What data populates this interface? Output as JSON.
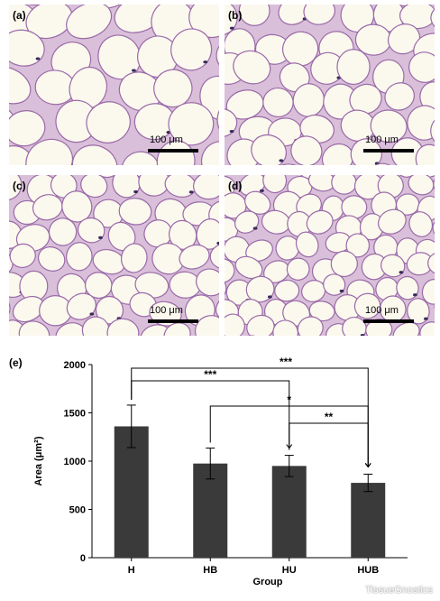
{
  "panels": [
    {
      "label": "(a)",
      "scale": "100 μm"
    },
    {
      "label": "(b)",
      "scale": "100 μm"
    },
    {
      "label": "(c)",
      "scale": "100 μm"
    },
    {
      "label": "(d)",
      "scale": "100 μm"
    }
  ],
  "colors": {
    "bar": "#3a3a3a",
    "tissue_bg": "#f6f2e6",
    "membrane": "#9a6aa8",
    "nucleus": "#3b2a5a"
  },
  "chart_data": {
    "type": "bar",
    "panel_label": "(e)",
    "categories": [
      "H",
      "HB",
      "HU",
      "HUB"
    ],
    "values": [
      1360,
      975,
      950,
      775
    ],
    "errors": [
      220,
      160,
      110,
      90
    ],
    "xlabel": "Group",
    "ylabel": "Area (μm²)",
    "ylim": [
      0,
      2000
    ],
    "yticks": [
      0,
      500,
      1000,
      1500,
      2000
    ],
    "grid": false,
    "significance": [
      {
        "from": "H",
        "to": "HUB",
        "label": "***"
      },
      {
        "from": "H",
        "to": "HU",
        "label": "***"
      },
      {
        "from": "HB",
        "to": "HUB",
        "label": "*"
      },
      {
        "from": "HU",
        "to": "HUB",
        "label": "**"
      }
    ]
  },
  "watermark": "TissueGnostics"
}
